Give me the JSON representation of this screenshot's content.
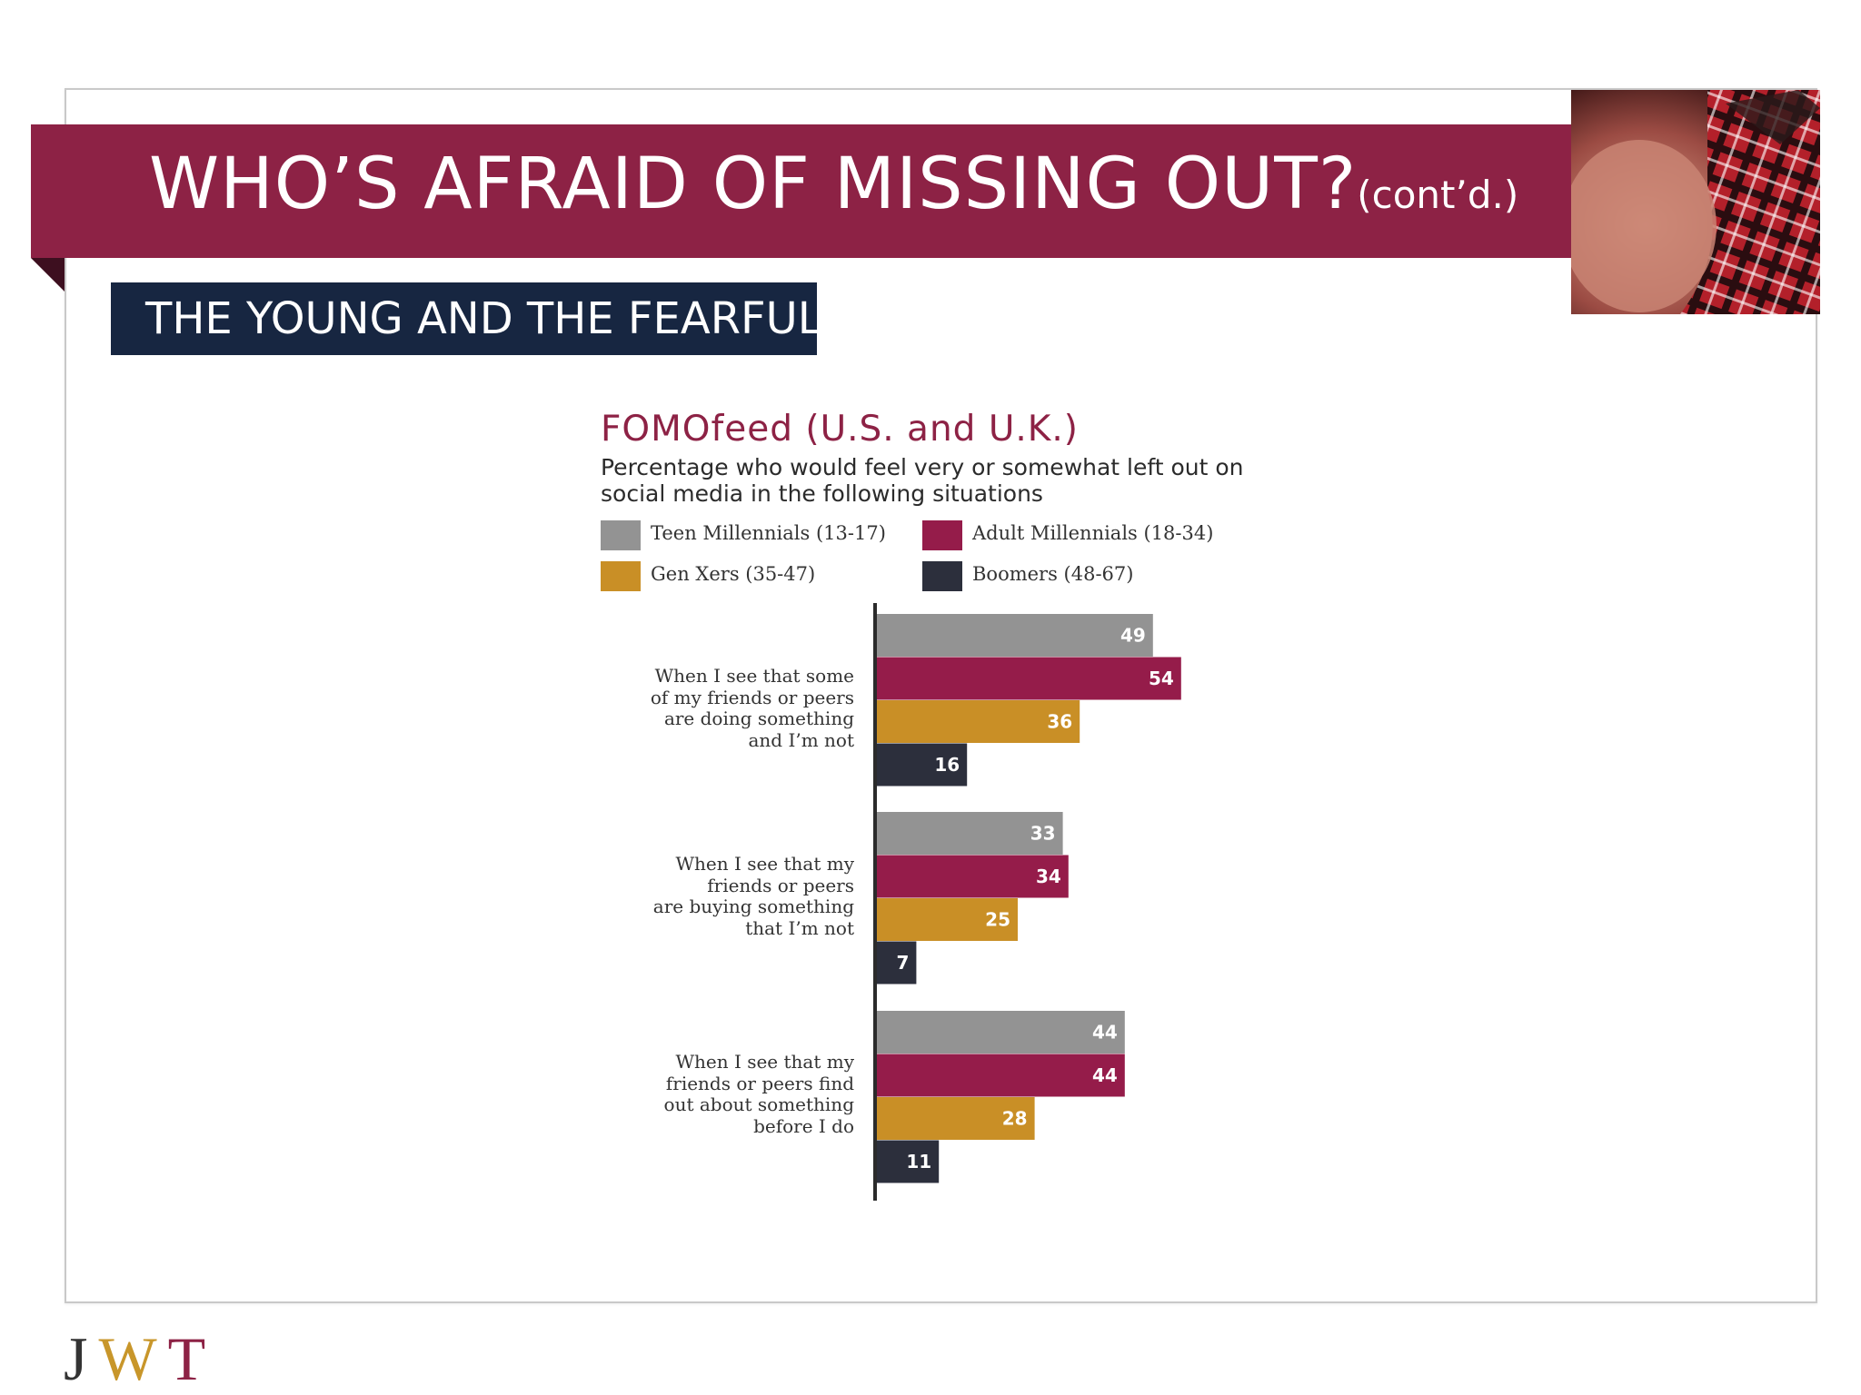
{
  "slide": {
    "title": "WHO’S AFRAID OF MISSING OUT?",
    "title_suffix": "(cont’d.)",
    "subtitle": "THE YOUNG AND THE FEARFUL",
    "logo": {
      "j": "J",
      "w": "W",
      "t": "T"
    },
    "colors": {
      "banner": "#8d2245",
      "subtitle_box": "#172641",
      "logo_j": "#333333",
      "logo_w": "#c8962a",
      "logo_t": "#8d2245"
    }
  },
  "chart_data": {
    "type": "bar",
    "orientation": "horizontal",
    "title": "FOMOfeed (U.S. and U.K.)",
    "subtitle": "Percentage who would feel very or somewhat left out on social media in the following situations",
    "legend_position": "top",
    "grid": false,
    "xlim": [
      0,
      100
    ],
    "categories": [
      [
        "When I see that some",
        "of my friends or peers",
        "are doing something",
        "and I’m not"
      ],
      [
        "When I see that my",
        "friends or peers",
        "are buying something",
        "that I’m not"
      ],
      [
        "When I see that my",
        "friends or peers find",
        "out about something",
        "before I do"
      ]
    ],
    "series": [
      {
        "name": "Teen Millennials (13-17)",
        "color": "#939393",
        "values": [
          49,
          33,
          44
        ]
      },
      {
        "name": "Adult Millennials (18-34)",
        "color": "#951c4a",
        "values": [
          54,
          34,
          44
        ]
      },
      {
        "name": "Gen Xers (35-47)",
        "color": "#c98f26",
        "values": [
          36,
          25,
          28
        ]
      },
      {
        "name": "Boomers (48-67)",
        "color": "#2c2f3c",
        "values": [
          16,
          7,
          11
        ]
      }
    ]
  }
}
